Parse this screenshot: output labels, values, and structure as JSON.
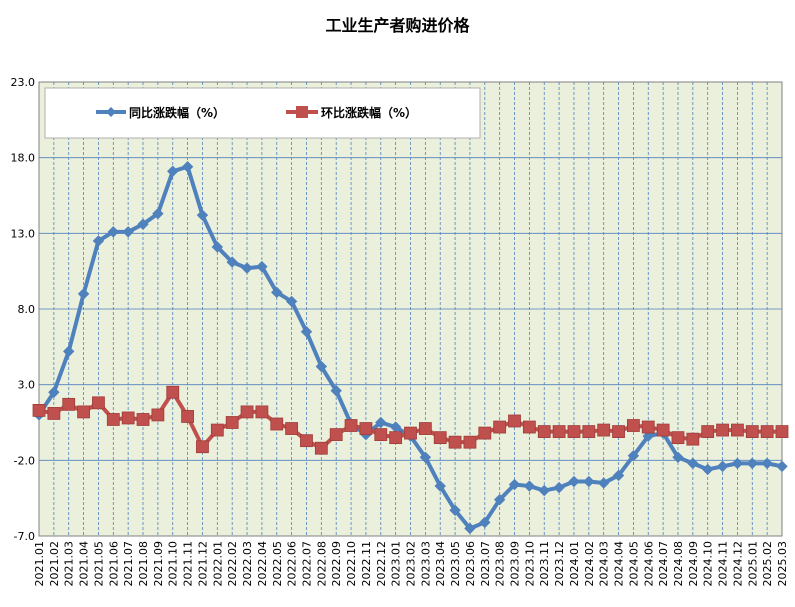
{
  "chart_data": {
    "type": "line",
    "title": "工业生产者购进价格",
    "ylim": [
      -7.0,
      23.0
    ],
    "yticks": [
      "23.0",
      "18.0",
      "13.0",
      "8.0",
      "3.0",
      "-2.0",
      "-7.0"
    ],
    "grid": {
      "horizontal": true,
      "vertical": true
    },
    "legend_position": "top-left",
    "categories": [
      "2021.01",
      "2021.02",
      "2021.03",
      "2021.04",
      "2021.05",
      "2021.06",
      "2021.07",
      "2021.08",
      "2021.09",
      "2021.10",
      "2021.11",
      "2021.12",
      "2022.01",
      "2022.02",
      "2022.03",
      "2022.04",
      "2022.05",
      "2022.06",
      "2022.07",
      "2022.08",
      "2022.09",
      "2022.10",
      "2022.11",
      "2022.12",
      "2023.01",
      "2023.02",
      "2023.03",
      "2023.04",
      "2023.05",
      "2023.06",
      "2023.07",
      "2023.08",
      "2023.09",
      "2023.10",
      "2023.11",
      "2023.12",
      "2024.01",
      "2024.02",
      "2024.03",
      "2024.04",
      "2024.05",
      "2024.06",
      "2024.07",
      "2024.08",
      "2024.09",
      "2024.10",
      "2024.11",
      "2024.12",
      "2025.01",
      "2025.02",
      "2025.03"
    ],
    "series": [
      {
        "name": "同比涨跌幅（%）",
        "color": "#4f81bd",
        "marker": "diamond",
        "values": [
          1.0,
          2.5,
          5.2,
          9.0,
          12.5,
          13.1,
          13.1,
          13.6,
          14.3,
          17.1,
          17.4,
          14.2,
          12.1,
          11.1,
          10.7,
          10.8,
          9.1,
          8.5,
          6.5,
          4.2,
          2.6,
          0.4,
          -0.3,
          0.5,
          0.2,
          -0.4,
          -1.8,
          -3.7,
          -5.3,
          -6.5,
          -6.1,
          -4.6,
          -3.6,
          -3.7,
          -4.0,
          -3.8,
          -3.4,
          -3.4,
          -3.5,
          -3.0,
          -1.7,
          -0.4,
          -0.2,
          -1.8,
          -2.2,
          -2.6,
          -2.4,
          -2.2,
          -2.2,
          -2.2,
          -2.4
        ]
      },
      {
        "name": "环比涨跌幅（%）",
        "color": "#c0504d",
        "marker": "square",
        "values": [
          1.3,
          1.1,
          1.7,
          1.2,
          1.8,
          0.7,
          0.8,
          0.7,
          1.0,
          2.5,
          0.9,
          -1.1,
          0.0,
          0.5,
          1.2,
          1.2,
          0.4,
          0.1,
          -0.7,
          -1.2,
          -0.3,
          0.3,
          0.1,
          -0.3,
          -0.5,
          -0.2,
          0.1,
          -0.5,
          -0.8,
          -0.8,
          -0.2,
          0.2,
          0.6,
          0.2,
          -0.1,
          -0.1,
          -0.1,
          -0.1,
          0.0,
          -0.1,
          0.3,
          0.2,
          0.0,
          -0.5,
          -0.6,
          -0.1,
          0.0,
          0.0,
          -0.1,
          -0.1,
          -0.1
        ]
      }
    ]
  }
}
